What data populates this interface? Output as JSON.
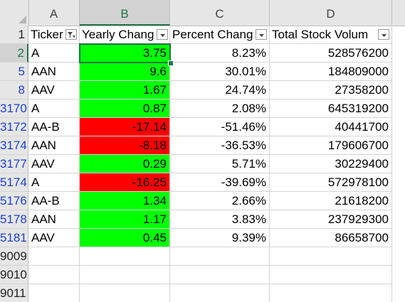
{
  "columns": [
    "A",
    "B",
    "C",
    "D"
  ],
  "headers": {
    "ticker": "Ticker",
    "yearly_change": "Yearly Chang",
    "percent_change": "Percent Chang",
    "total_volume": "Total Stock Volum"
  },
  "row_numbers": [
    "1",
    "2",
    "5",
    "8",
    "3170",
    "3172",
    "3174",
    "3177",
    "5174",
    "5176",
    "5178",
    "5181",
    "9009",
    "9010",
    "9011"
  ],
  "rows": [
    {
      "ticker": "A",
      "yearly": "3.75",
      "percent": "8.23%",
      "volume": "528576200",
      "status": "positive"
    },
    {
      "ticker": "AAN",
      "yearly": "9.6",
      "percent": "30.01%",
      "volume": "184809000",
      "status": "positive"
    },
    {
      "ticker": "AAV",
      "yearly": "1.67",
      "percent": "24.74%",
      "volume": "27358200",
      "status": "positive"
    },
    {
      "ticker": "A",
      "yearly": "0.87",
      "percent": "2.08%",
      "volume": "645319200",
      "status": "positive"
    },
    {
      "ticker": "AA-B",
      "yearly": "-17.14",
      "percent": "-51.46%",
      "volume": "40441700",
      "status": "negative"
    },
    {
      "ticker": "AAN",
      "yearly": "-8.18",
      "percent": "-36.53%",
      "volume": "179606700",
      "status": "negative"
    },
    {
      "ticker": "AAV",
      "yearly": "0.29",
      "percent": "5.71%",
      "volume": "30229400",
      "status": "positive"
    },
    {
      "ticker": "A",
      "yearly": "-16.25",
      "percent": "-39.69%",
      "volume": "572978100",
      "status": "negative"
    },
    {
      "ticker": "AA-B",
      "yearly": "1.34",
      "percent": "2.66%",
      "volume": "21618200",
      "status": "positive"
    },
    {
      "ticker": "AAN",
      "yearly": "1.17",
      "percent": "3.83%",
      "volume": "237929300",
      "status": "positive"
    },
    {
      "ticker": "AAV",
      "yearly": "0.45",
      "percent": "9.39%",
      "volume": "86658700",
      "status": "positive"
    }
  ],
  "colors": {
    "positive": "#00ff00",
    "negative": "#ff0000",
    "selection": "#217346",
    "row_link": "#1a3fd6"
  },
  "icons": {
    "ticker_filter": "filter-active-icon",
    "dropdown": "dropdown-arrow-icon"
  }
}
